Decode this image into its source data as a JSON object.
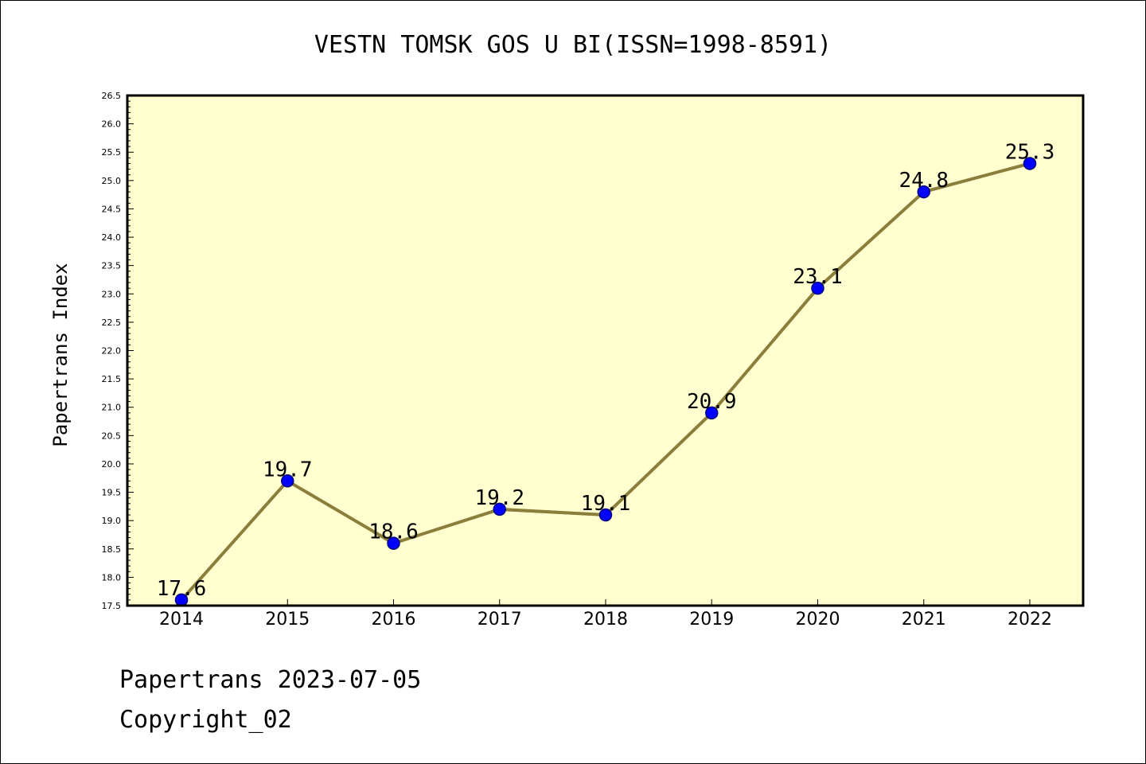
{
  "chart_data": {
    "type": "line",
    "title": "VESTN TOMSK GOS U BI(ISSN=1998-8591)",
    "xlabel": "",
    "ylabel": "Papertrans Index",
    "categories": [
      "2014",
      "2015",
      "2016",
      "2017",
      "2018",
      "2019",
      "2020",
      "2021",
      "2022"
    ],
    "values": [
      17.6,
      19.7,
      18.6,
      19.2,
      19.1,
      20.9,
      23.1,
      24.8,
      25.3
    ],
    "data_labels": [
      "17.6",
      "19.7",
      "18.6",
      "19.2",
      "19.1",
      "20.9",
      "23.1",
      "24.8",
      "25.3"
    ],
    "ylim": [
      17.5,
      26.5
    ],
    "yticks": [
      "17.5",
      "18.0",
      "18.5",
      "19.0",
      "19.5",
      "20.0",
      "20.5",
      "21.0",
      "21.5",
      "22.0",
      "22.5",
      "23.0",
      "23.5",
      "24.0",
      "24.5",
      "25.0",
      "25.5",
      "26.0",
      "26.5"
    ],
    "grid": false,
    "legend": "none",
    "colors": {
      "plot_background": "#ffffd0",
      "line": "#8b7d3a",
      "marker": "#0000ff",
      "marker_edge": "#000080"
    }
  },
  "footer": {
    "date_line": "Papertrans 2023-07-05",
    "copyright": "Copyright_02"
  }
}
